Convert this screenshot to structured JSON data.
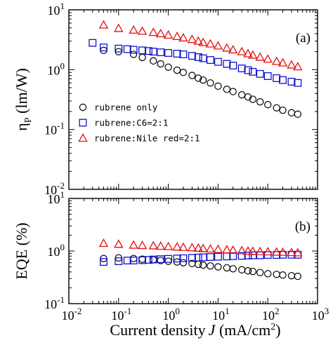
{
  "colors": {
    "rubrene_only": "#000000",
    "rubrene_c6": "#1010d0",
    "rubrene_nile": "#e01010"
  },
  "x_axis": {
    "title_prefix": "Current density",
    "title_var": "J",
    "title_units_open": " (mA/cm",
    "title_units_sup": "2",
    "title_units_close": ")",
    "scale": "log",
    "range": [
      0.01,
      1000
    ],
    "ticks": [
      {
        "base": "10",
        "exp": "-2"
      },
      {
        "base": "10",
        "exp": "-1"
      },
      {
        "base": "10",
        "exp": "0"
      },
      {
        "base": "10",
        "exp": "1"
      },
      {
        "base": "10",
        "exp": "2"
      },
      {
        "base": "10",
        "exp": "3"
      }
    ]
  },
  "chart_data": [
    {
      "type": "scatter",
      "panel": "(a)",
      "ylabel_sym": "η",
      "ylabel_sub": "P",
      "ylabel_units": " (lm/W)",
      "xscale": "log",
      "yscale": "log",
      "xlim": [
        0.01,
        1000
      ],
      "ylim": [
        0.01,
        10
      ],
      "yticks": [
        {
          "base": "10",
          "exp": "-2"
        },
        {
          "base": "10",
          "exp": "-1"
        },
        {
          "base": "10",
          "exp": "0"
        },
        {
          "base": "10",
          "exp": "1"
        }
      ],
      "legend_position": "center-left",
      "series": [
        {
          "name": "rubrene only",
          "marker": "circle",
          "x": [
            0.05,
            0.1,
            0.2,
            0.3,
            0.5,
            0.7,
            1,
            1.5,
            2,
            3,
            4,
            5,
            7,
            10,
            15,
            20,
            30,
            40,
            50,
            70,
            100,
            150,
            200,
            300,
            400
          ],
          "y": [
            2.1,
            2.0,
            1.8,
            1.6,
            1.4,
            1.25,
            1.1,
            0.98,
            0.9,
            0.8,
            0.72,
            0.67,
            0.6,
            0.53,
            0.47,
            0.43,
            0.38,
            0.35,
            0.32,
            0.29,
            0.26,
            0.23,
            0.21,
            0.19,
            0.18
          ]
        },
        {
          "name": "rubrene:C6=2:1",
          "marker": "square",
          "x": [
            0.03,
            0.05,
            0.1,
            0.15,
            0.2,
            0.3,
            0.4,
            0.5,
            0.7,
            1,
            1.5,
            2,
            3,
            4,
            5,
            7,
            10,
            15,
            20,
            30,
            40,
            50,
            70,
            100,
            150,
            200,
            300,
            400
          ],
          "y": [
            2.8,
            2.35,
            2.25,
            2.2,
            2.15,
            2.1,
            2.05,
            2.0,
            1.95,
            1.9,
            1.85,
            1.8,
            1.7,
            1.62,
            1.55,
            1.45,
            1.35,
            1.25,
            1.17,
            1.05,
            0.98,
            0.92,
            0.85,
            0.78,
            0.72,
            0.67,
            0.63,
            0.6
          ]
        },
        {
          "name": "rubrene:Nile red=2:1",
          "marker": "triangle",
          "x": [
            0.05,
            0.1,
            0.2,
            0.3,
            0.5,
            0.7,
            1,
            1.5,
            2,
            3,
            4,
            5,
            7,
            10,
            15,
            20,
            30,
            40,
            50,
            70,
            100,
            150,
            200,
            300,
            400
          ],
          "y": [
            5.6,
            4.9,
            4.6,
            4.4,
            4.2,
            4.0,
            3.8,
            3.6,
            3.4,
            3.2,
            3.0,
            2.85,
            2.7,
            2.5,
            2.3,
            2.15,
            2.0,
            1.85,
            1.75,
            1.62,
            1.5,
            1.38,
            1.3,
            1.2,
            1.12
          ]
        }
      ]
    },
    {
      "type": "scatter",
      "panel": "(b)",
      "ylabel": "EQE (%)",
      "xscale": "log",
      "yscale": "log",
      "xlim": [
        0.01,
        1000
      ],
      "ylim": [
        0.1,
        10
      ],
      "yticks": [
        {
          "base": "10",
          "exp": "-1"
        },
        {
          "base": "10",
          "exp": "0"
        },
        {
          "base": "10",
          "exp": "1"
        }
      ],
      "series": [
        {
          "name": "rubrene only",
          "marker": "circle",
          "x": [
            0.05,
            0.1,
            0.2,
            0.3,
            0.5,
            0.7,
            1,
            1.5,
            2,
            3,
            4,
            5,
            7,
            10,
            15,
            20,
            30,
            40,
            50,
            70,
            100,
            150,
            200,
            300,
            400
          ],
          "y": [
            0.72,
            0.74,
            0.72,
            0.7,
            0.68,
            0.66,
            0.64,
            0.62,
            0.6,
            0.58,
            0.56,
            0.54,
            0.52,
            0.5,
            0.48,
            0.46,
            0.44,
            0.42,
            0.41,
            0.39,
            0.37,
            0.36,
            0.35,
            0.34,
            0.33
          ]
        },
        {
          "name": "rubrene:C6=2:1",
          "marker": "square",
          "x": [
            0.05,
            0.1,
            0.15,
            0.2,
            0.3,
            0.4,
            0.5,
            0.7,
            1,
            1.5,
            2,
            3,
            4,
            5,
            7,
            10,
            15,
            20,
            30,
            40,
            50,
            70,
            100,
            150,
            200,
            300,
            400
          ],
          "y": [
            0.62,
            0.64,
            0.66,
            0.66,
            0.67,
            0.68,
            0.69,
            0.7,
            0.71,
            0.72,
            0.73,
            0.74,
            0.75,
            0.76,
            0.77,
            0.78,
            0.79,
            0.8,
            0.81,
            0.82,
            0.83,
            0.83,
            0.84,
            0.84,
            0.85,
            0.85,
            0.85
          ]
        },
        {
          "name": "rubrene:Nile red=2:1",
          "marker": "triangle",
          "x": [
            0.05,
            0.1,
            0.2,
            0.3,
            0.5,
            0.7,
            1,
            1.5,
            2,
            3,
            4,
            5,
            7,
            10,
            15,
            20,
            30,
            40,
            50,
            70,
            100,
            150,
            200,
            300,
            400
          ],
          "y": [
            1.4,
            1.35,
            1.3,
            1.28,
            1.26,
            1.24,
            1.22,
            1.2,
            1.18,
            1.16,
            1.14,
            1.12,
            1.1,
            1.08,
            1.06,
            1.04,
            1.02,
            1.0,
            0.99,
            0.98,
            0.97,
            0.96,
            0.95,
            0.94,
            0.93
          ]
        }
      ]
    }
  ]
}
